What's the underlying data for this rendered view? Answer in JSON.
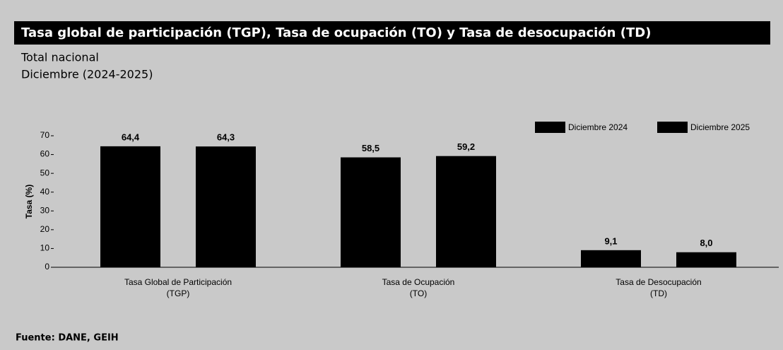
{
  "chart_data": {
    "type": "bar",
    "title": "Tasa global de participación (TGP), Tasa de ocupación (TO) y Tasa de desocupación (TD)",
    "subtitle": [
      "Total nacional",
      "Diciembre (2024-2025)"
    ],
    "y_label": "Tasa (%)",
    "source": "Fuente: DANE, GEIH",
    "categories": [
      [
        "Tasa Global de Participación",
        "(TGP)"
      ],
      [
        "Tasa de Ocupación",
        "(TO)"
      ],
      [
        "Tasa de Desocupación",
        "(TD)"
      ]
    ],
    "series": [
      {
        "name": "Diciembre 2024",
        "color": "#000000",
        "values": [
          64.4,
          58.5,
          9.1
        ],
        "value_labels": [
          "64,4",
          "58,5",
          "9,1"
        ]
      },
      {
        "name": "Diciembre 2025",
        "color": "#000000",
        "values": [
          64.3,
          59.2,
          8.0
        ],
        "value_labels": [
          "64,3",
          "59,2",
          "8,0"
        ]
      }
    ],
    "ylim": [
      0,
      70
    ],
    "yticks": [
      0,
      10,
      20,
      30,
      40,
      50,
      60,
      70
    ],
    "legend": "top-right"
  }
}
